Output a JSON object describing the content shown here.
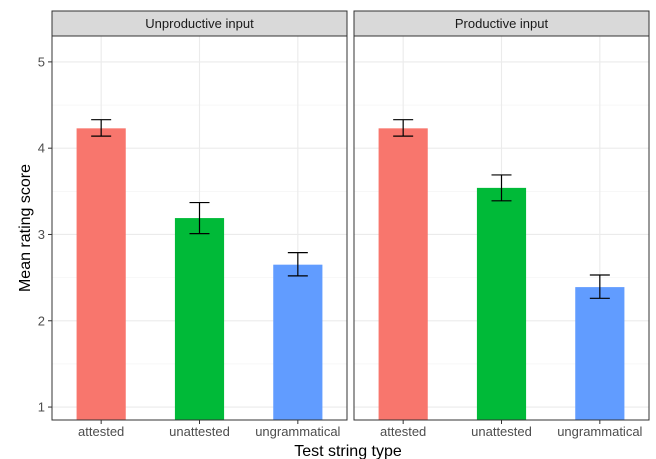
{
  "chart_data": {
    "type": "bar",
    "xlabel": "Test string type",
    "ylabel": "Mean rating score",
    "ylim": [
      0.85,
      5.3
    ],
    "yticks": [
      1,
      2,
      3,
      4,
      5
    ],
    "categories": [
      "attested",
      "unattested",
      "ungrammatical"
    ],
    "colors": [
      "#F8766D",
      "#00BA38",
      "#619CFF"
    ],
    "grid": true,
    "legend": "none",
    "panels": [
      {
        "title": "Unproductive input",
        "values": [
          4.23,
          3.19,
          2.65
        ],
        "error_low": [
          4.14,
          3.01,
          2.52
        ],
        "error_high": [
          4.33,
          3.37,
          2.79
        ]
      },
      {
        "title": "Productive input",
        "values": [
          4.23,
          3.54,
          2.39
        ],
        "error_low": [
          4.14,
          3.39,
          2.26
        ],
        "error_high": [
          4.33,
          3.69,
          2.53
        ]
      }
    ]
  }
}
